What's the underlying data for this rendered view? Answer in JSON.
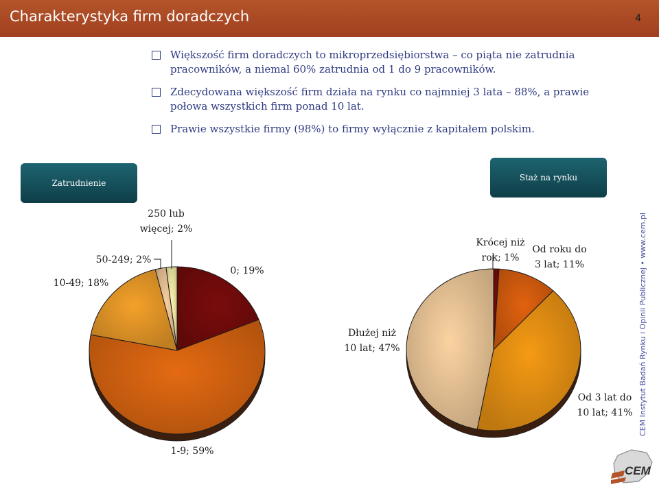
{
  "header": {
    "title": "Charakterystyka firm doradczych",
    "page_number": "4"
  },
  "bullets": [
    {
      "lines": [
        "Większość firm doradczych to mikroprzedsiębiorstwa – co piąta nie zatrudnia",
        "pracowników, a niemal 60% zatrudnia od 1 do 9 pracowników."
      ]
    },
    {
      "lines": [
        "Zdecydowana większość firm działa na rynku co najmniej 3 lata – 88%, a prawie",
        "połowa wszystkich firm ponad 10 lat."
      ]
    },
    {
      "lines": [
        "Prawie wszystkie firmy (98%) to firmy wyłącznie z kapitałem polskim."
      ]
    }
  ],
  "tabs": {
    "employment": "Zatrudnienie",
    "tenure": "Staż na rynku"
  },
  "side_text": "CEM Instytut Badań Rynku i Opinii Publicznej • www.cem.pl",
  "logo": {
    "text": "CEM",
    "icon": "cem-logo-icon"
  },
  "chart_data": [
    {
      "type": "pie",
      "title": "Zatrudnienie",
      "slices": [
        {
          "label": "0",
          "value": 19,
          "label_lines": [
            "0; 19%"
          ],
          "color": "#7a0c0c"
        },
        {
          "label": "1-9",
          "value": 59,
          "label_lines": [
            "1-9; 59%"
          ],
          "color": "#e46a12"
        },
        {
          "label": "10-49",
          "value": 18,
          "label_lines": [
            "10-49; 18%"
          ],
          "color": "#f4a12a"
        },
        {
          "label": "50-249",
          "value": 2,
          "label_lines": [
            "50-249; 2%"
          ],
          "color": "#f8cfa0"
        },
        {
          "label": "250 lub więcej",
          "value": 2,
          "label_lines": [
            "250 lub",
            "więcej; 2%"
          ],
          "color": "#fff7b0"
        }
      ]
    },
    {
      "type": "pie",
      "title": "Staż na rynku",
      "slices": [
        {
          "label": "Krócej niż rok",
          "value": 1,
          "label_lines": [
            "Krócej niż",
            "rok; 1%"
          ],
          "color": "#7a0c0c"
        },
        {
          "label": "Od roku do 3 lat",
          "value": 11,
          "label_lines": [
            "Od roku do",
            "3 lat; 11%"
          ],
          "color": "#e1620f"
        },
        {
          "label": "Od 3 lat do 10 lat",
          "value": 41,
          "label_lines": [
            "Od 3 lat do",
            "10 lat; 41%"
          ],
          "color": "#f59a14"
        },
        {
          "label": "Dłużej niż 10 lat",
          "value": 47,
          "label_lines": [
            "Dłużej niż",
            "10 lat; 47%"
          ],
          "color": "#fbd3a2"
        }
      ]
    }
  ]
}
